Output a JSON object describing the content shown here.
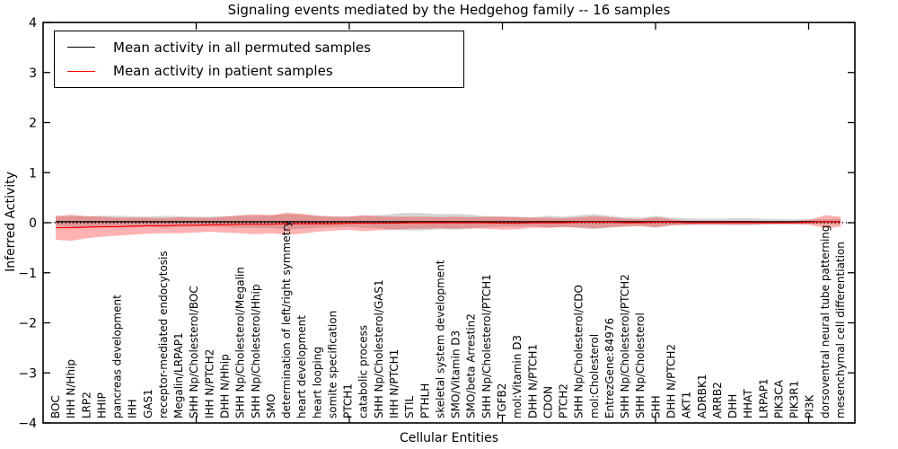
{
  "chart_data": {
    "type": "line",
    "title": "Signaling events mediated by the Hedgehog family -- 16 samples",
    "xlabel": "Cellular Entities",
    "ylabel": "Inferred Activity",
    "ylim": [
      -4,
      4
    ],
    "yticks": [
      -4,
      -3,
      -2,
      -1,
      0,
      1,
      2,
      3,
      4
    ],
    "grid": false,
    "legend_position": "upper left",
    "legend": [
      {
        "label": "Mean activity in all permuted samples",
        "color": "#000000"
      },
      {
        "label": "Mean activity in patient samples",
        "color": "#ff0000"
      }
    ],
    "zero_line": {
      "y": 0,
      "style": "dotted",
      "color": "#000000"
    },
    "entities": [
      "BOC",
      "IHH N/Hhip",
      "LRP2",
      "HHIP",
      "pancreas development",
      "IHH",
      "GAS1",
      "receptor-mediated endocytosis",
      "Megalin/LRPAP1",
      "SHH Np/Cholesterol/BOC",
      "IHH N/PTCH2",
      "DHH N/Hhip",
      "SHH Np/Cholesterol/Megalin",
      "SHH Np/Cholesterol/Hhip",
      "SMO",
      "determination of left/right symmetry",
      "heart development",
      "heart looping",
      "somite specification",
      "PTCH1",
      "catabolic process",
      "SHH Np/Cholesterol/GAS1",
      "IHH N/PTCH1",
      "STIL",
      "PTHLH",
      "skeletal system development",
      "SMO/Vitamin D3",
      "SMO/beta Arrestin2",
      "SHH Np/Cholesterol/PTCH1",
      "TGFB2",
      "mol:Vitamin D3",
      "DHH N/PTCH1",
      "CDON",
      "PTCH2",
      "SHH Np/Cholesterol/CDO",
      "mol:Cholesterol",
      "EntrezGene:84976",
      "SHH Np/Cholesterol/PTCH2",
      "SHH Np/Cholesterol",
      "SHH",
      "DHH N/PTCH2",
      "AKT1",
      "ADRBK1",
      "ARRB2",
      "DHH",
      "HHAT",
      "LRPAP1",
      "PIK3CA",
      "PIK3R1",
      "PI3K",
      "dorsoventral neural tube patterning",
      "mesenchymal cell differentiation"
    ],
    "series": [
      {
        "name": "Mean activity in all permuted samples",
        "color": "#000000",
        "values": [
          0.02,
          0.02,
          0.02,
          0.02,
          0.02,
          0.02,
          0.02,
          0.02,
          0.02,
          0.02,
          0.02,
          0.02,
          0.02,
          0.02,
          0.02,
          0.02,
          0.02,
          0.02,
          0.02,
          0.02,
          0.02,
          0.02,
          0.02,
          0.02,
          0.02,
          0.02,
          0.02,
          0.02,
          0.02,
          0.02,
          0.02,
          0.02,
          0.02,
          0.02,
          0.02,
          0.02,
          0.02,
          0.02,
          0.02,
          0.02,
          0.02,
          0.02,
          0.02,
          0.02,
          0.02,
          0.02,
          0.02,
          0.02,
          0.02,
          0.02,
          0.02,
          0.02
        ]
      },
      {
        "name": "Mean activity in patient samples",
        "color": "#ff0000",
        "values": [
          -0.1,
          -0.1,
          -0.09,
          -0.08,
          -0.08,
          -0.07,
          -0.06,
          -0.06,
          -0.05,
          -0.05,
          -0.04,
          -0.04,
          -0.03,
          -0.03,
          -0.03,
          -0.02,
          -0.02,
          -0.02,
          -0.02,
          -0.01,
          -0.01,
          -0.01,
          -0.01,
          0.0,
          0.0,
          0.0,
          0.0,
          0.0,
          0.0,
          -0.01,
          -0.01,
          0.0,
          0.0,
          0.0,
          0.01,
          0.01,
          0.01,
          0.0,
          0.0,
          0.01,
          0.01,
          0.0,
          0.0,
          0.0,
          0.0,
          0.0,
          0.0,
          0.0,
          0.0,
          0.01,
          0.02,
          0.02
        ]
      }
    ],
    "bands": [
      {
        "name": "permuted std band",
        "color": "#808080",
        "alpha": 0.32,
        "half_width": [
          0.1,
          0.11,
          0.11,
          0.12,
          0.12,
          0.11,
          0.1,
          0.12,
          0.11,
          0.1,
          0.1,
          0.11,
          0.12,
          0.12,
          0.13,
          0.15,
          0.14,
          0.12,
          0.11,
          0.1,
          0.12,
          0.13,
          0.16,
          0.18,
          0.17,
          0.15,
          0.16,
          0.14,
          0.11,
          0.1,
          0.1,
          0.09,
          0.12,
          0.1,
          0.13,
          0.15,
          0.12,
          0.09,
          0.08,
          0.12,
          0.08,
          0.07,
          0.06,
          0.06,
          0.07,
          0.07,
          0.06,
          0.05,
          0.05,
          0.05,
          0.05,
          0.06
        ]
      },
      {
        "name": "patient std band",
        "color": "#ff0000",
        "alpha": 0.3,
        "half_width": [
          0.24,
          0.26,
          0.22,
          0.2,
          0.18,
          0.17,
          0.16,
          0.15,
          0.16,
          0.15,
          0.14,
          0.16,
          0.18,
          0.2,
          0.18,
          0.22,
          0.2,
          0.16,
          0.14,
          0.13,
          0.16,
          0.14,
          0.13,
          0.12,
          0.12,
          0.11,
          0.12,
          0.11,
          0.12,
          0.13,
          0.12,
          0.1,
          0.1,
          0.09,
          0.1,
          0.12,
          0.1,
          0.08,
          0.07,
          0.1,
          0.06,
          0.04,
          0.04,
          0.04,
          0.04,
          0.04,
          0.03,
          0.03,
          0.03,
          0.05,
          0.13,
          0.1
        ]
      }
    ]
  }
}
